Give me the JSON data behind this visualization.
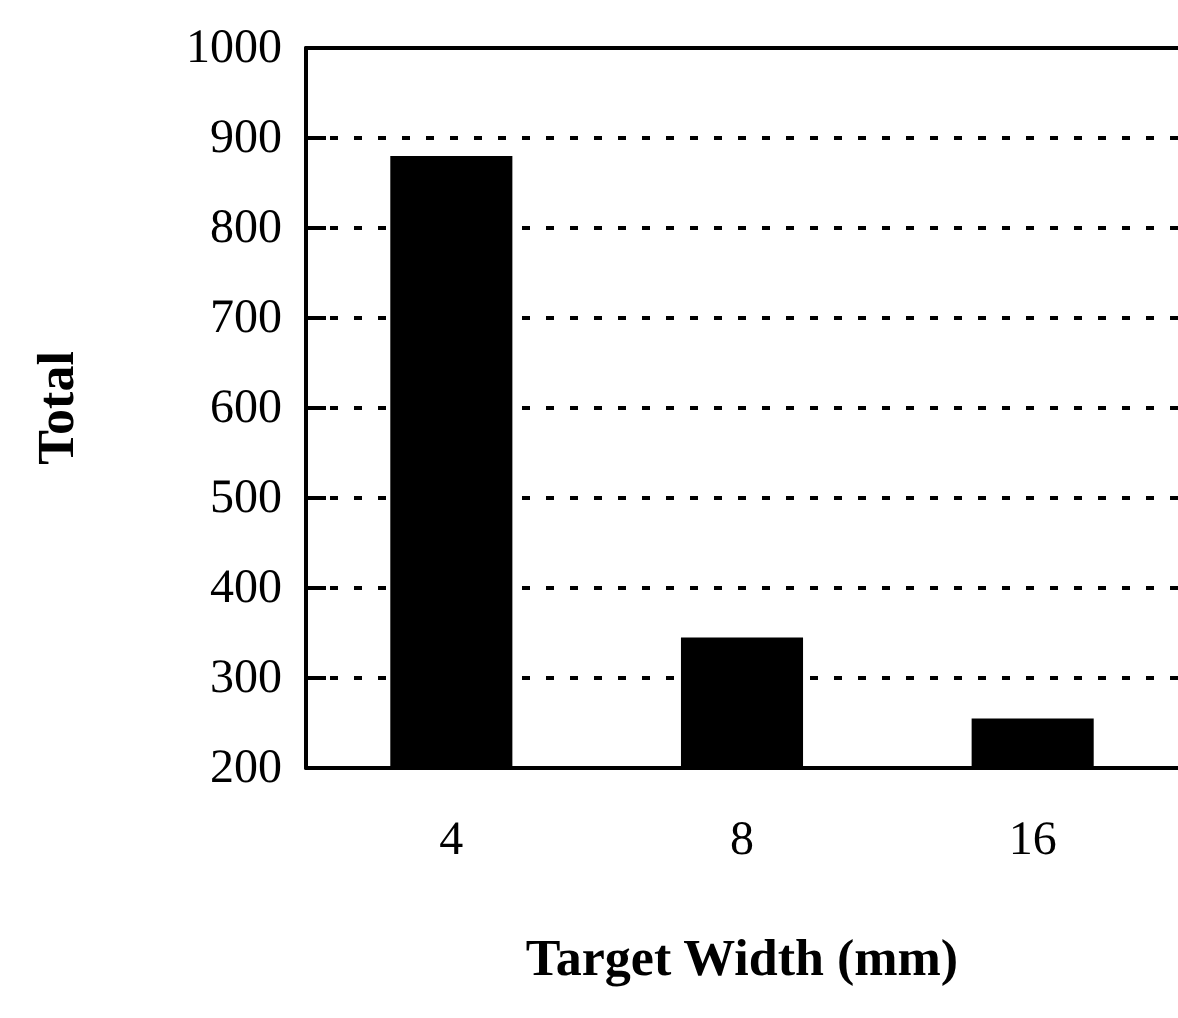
{
  "chart_data": {
    "type": "bar",
    "xlabel": "Target Width (mm)",
    "ylabel": "Total",
    "categories": [
      "4",
      "8",
      "16"
    ],
    "values": [
      880,
      345,
      255
    ],
    "color": "#000000",
    "ylim": [
      200,
      1000
    ],
    "yticks": [
      200,
      300,
      400,
      500,
      600,
      700,
      800,
      900,
      1000
    ],
    "grid": "y"
  }
}
